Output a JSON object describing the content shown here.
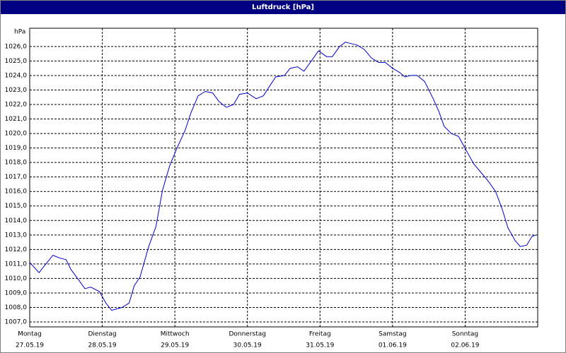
{
  "chart_data": {
    "type": "line",
    "title": "Luftdruck [hPa]",
    "ylabel": "hPa",
    "color": "#0000cc",
    "grid": true,
    "xlim": [
      0,
      7
    ],
    "xticks": [
      {
        "value": 0,
        "label": "Montag",
        "date": "27.05.19"
      },
      {
        "value": 1,
        "label": "Dienstag",
        "date": "28.05.19"
      },
      {
        "value": 2,
        "label": "Mittwoch",
        "date": "29.05.19"
      },
      {
        "value": 3,
        "label": "Donnerstag",
        "date": "30.05.19"
      },
      {
        "value": 4,
        "label": "Freitag",
        "date": "31.05.19"
      },
      {
        "value": 5,
        "label": "Samstag",
        "date": "01.06.19"
      },
      {
        "value": 6,
        "label": "Sonntag",
        "date": "02.06.19"
      }
    ],
    "ylim": [
      1006.66,
      1027.26
    ],
    "yticks": [
      {
        "value": 1007,
        "label": "1007,0"
      },
      {
        "value": 1008,
        "label": "1008,0"
      },
      {
        "value": 1009,
        "label": "1009,0"
      },
      {
        "value": 1010,
        "label": "1010,0"
      },
      {
        "value": 1011,
        "label": "1011,0"
      },
      {
        "value": 1012,
        "label": "1012,0"
      },
      {
        "value": 1013,
        "label": "1013,0"
      },
      {
        "value": 1014,
        "label": "1014,0"
      },
      {
        "value": 1015,
        "label": "1015,0"
      },
      {
        "value": 1016,
        "label": "1016,0"
      },
      {
        "value": 1017,
        "label": "1017,0"
      },
      {
        "value": 1018,
        "label": "1018,0"
      },
      {
        "value": 1019,
        "label": "1019,0"
      },
      {
        "value": 1020,
        "label": "1020,0"
      },
      {
        "value": 1021,
        "label": "1021,0"
      },
      {
        "value": 1022,
        "label": "1022,0"
      },
      {
        "value": 1023,
        "label": "1023,0"
      },
      {
        "value": 1024,
        "label": "1024,0"
      },
      {
        "value": 1025,
        "label": "1025,0"
      },
      {
        "value": 1026,
        "label": "1026,0"
      }
    ],
    "x": [
      0,
      0.13,
      0.19,
      0.32,
      0.42,
      0.5,
      0.57,
      0.66,
      0.76,
      0.84,
      0.96,
      1.05,
      1.13,
      1.2,
      1.27,
      1.37,
      1.44,
      1.52,
      1.64,
      1.74,
      1.83,
      1.93,
      2.03,
      2.14,
      2.22,
      2.32,
      2.42,
      2.52,
      2.61,
      2.71,
      2.81,
      2.89,
      3.0,
      3.12,
      3.22,
      3.31,
      3.39,
      3.51,
      3.59,
      3.69,
      3.78,
      3.88,
      3.98,
      4.09,
      4.17,
      4.27,
      4.35,
      4.43,
      4.51,
      4.61,
      4.71,
      4.81,
      4.9,
      5.0,
      5.1,
      5.17,
      5.25,
      5.34,
      5.44,
      5.56,
      5.64,
      5.71,
      5.81,
      5.91,
      6.03,
      6.12,
      6.22,
      6.32,
      6.42,
      6.51,
      6.59,
      6.69,
      6.76,
      6.85,
      6.92,
      6.98
    ],
    "values": [
      1011.1,
      1010.4,
      1010.8,
      1011.6,
      1011.4,
      1011.3,
      1010.6,
      1010.0,
      1009.3,
      1009.4,
      1009.1,
      1008.3,
      1007.8,
      1007.9,
      1008.0,
      1008.3,
      1009.5,
      1010.1,
      1012.2,
      1013.6,
      1016.1,
      1017.8,
      1019.0,
      1020.2,
      1021.4,
      1022.6,
      1022.9,
      1022.8,
      1022.2,
      1021.8,
      1022.0,
      1022.7,
      1022.8,
      1022.4,
      1022.6,
      1023.3,
      1023.9,
      1024.0,
      1024.5,
      1024.6,
      1024.3,
      1025.0,
      1025.7,
      1025.3,
      1025.3,
      1026.0,
      1026.3,
      1026.2,
      1026.1,
      1025.8,
      1025.2,
      1024.9,
      1024.9,
      1024.5,
      1024.2,
      1023.9,
      1024.0,
      1024.0,
      1023.6,
      1022.4,
      1021.5,
      1020.5,
      1020.0,
      1019.8,
      1018.7,
      1017.9,
      1017.3,
      1016.7,
      1016.0,
      1014.8,
      1013.5,
      1012.6,
      1012.2,
      1012.3,
      1012.9,
      1013.0
    ]
  }
}
